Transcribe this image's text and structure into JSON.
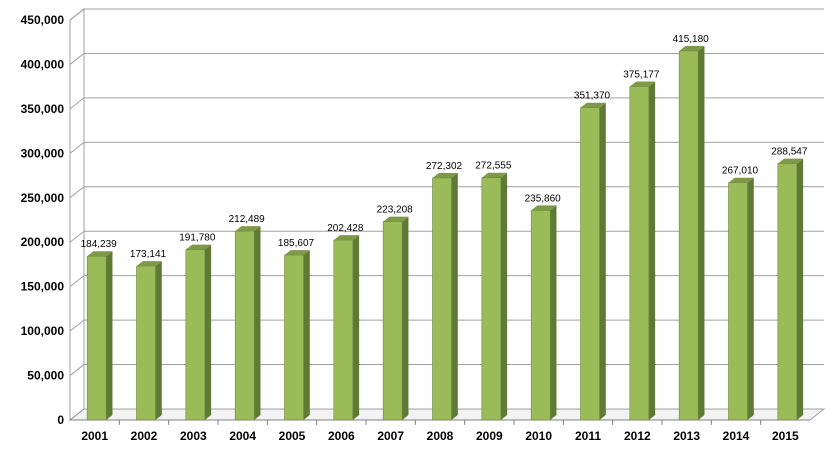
{
  "chart_data": {
    "type": "bar",
    "style": "3d-column",
    "categories": [
      "2001",
      "2002",
      "2003",
      "2004",
      "2005",
      "2006",
      "2007",
      "2008",
      "2009",
      "2010",
      "2011",
      "2012",
      "2013",
      "2014",
      "2015"
    ],
    "values": [
      184239,
      173141,
      191780,
      212489,
      185607,
      202428,
      223208,
      272302,
      272555,
      235860,
      351370,
      375177,
      415180,
      267010,
      288547
    ],
    "data_labels": [
      "184,239",
      "173,141",
      "191,780",
      "212,489",
      "185,607",
      "202,428",
      "223,208",
      "272,302",
      "272,555",
      "235,860",
      "351,370",
      "375,177",
      "415,180",
      "267,010",
      "288,547"
    ],
    "y_ticks": [
      "0",
      "50,000",
      "100,000",
      "150,000",
      "200,000",
      "250,000",
      "300,000",
      "350,000",
      "400,000",
      "450,000"
    ],
    "ylim": [
      0,
      450000
    ],
    "title": "",
    "xlabel": "",
    "ylabel": "",
    "grid": true,
    "legend": "none",
    "colors": {
      "bar_front": "#9BBB59",
      "bar_side": "#5F7A35",
      "bar_top": "#7E9A48",
      "grid": "#A0A0A0",
      "wall": "#FFFFFF"
    }
  }
}
